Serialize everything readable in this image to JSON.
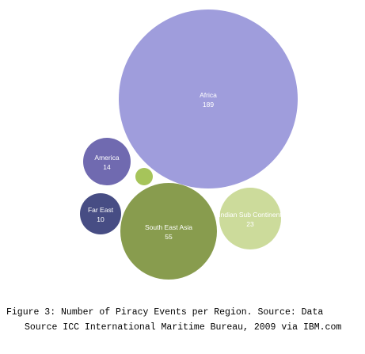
{
  "chart_data": {
    "type": "bubble",
    "series": [
      {
        "name": "Africa",
        "value": 189,
        "color": "#9f9ddc"
      },
      {
        "name": "South East Asia",
        "value": 55,
        "color": "#889c4e"
      },
      {
        "name": "Indian Sub Continent",
        "value": 23,
        "color": "#ccdb9b"
      },
      {
        "name": "America",
        "value": 14,
        "color": "#706ab0"
      },
      {
        "name": "Far East",
        "value": 10,
        "color": "#474d84"
      },
      {
        "name": "",
        "value": null,
        "color": "#a6c45a"
      }
    ],
    "legend": "none",
    "grid": false
  },
  "caption": {
    "line1": "Figure 3: Number of Piracy Events per Region. Source: Data",
    "line2": "Source ICC International Maritime Bureau, 2009 via IBM.com"
  }
}
